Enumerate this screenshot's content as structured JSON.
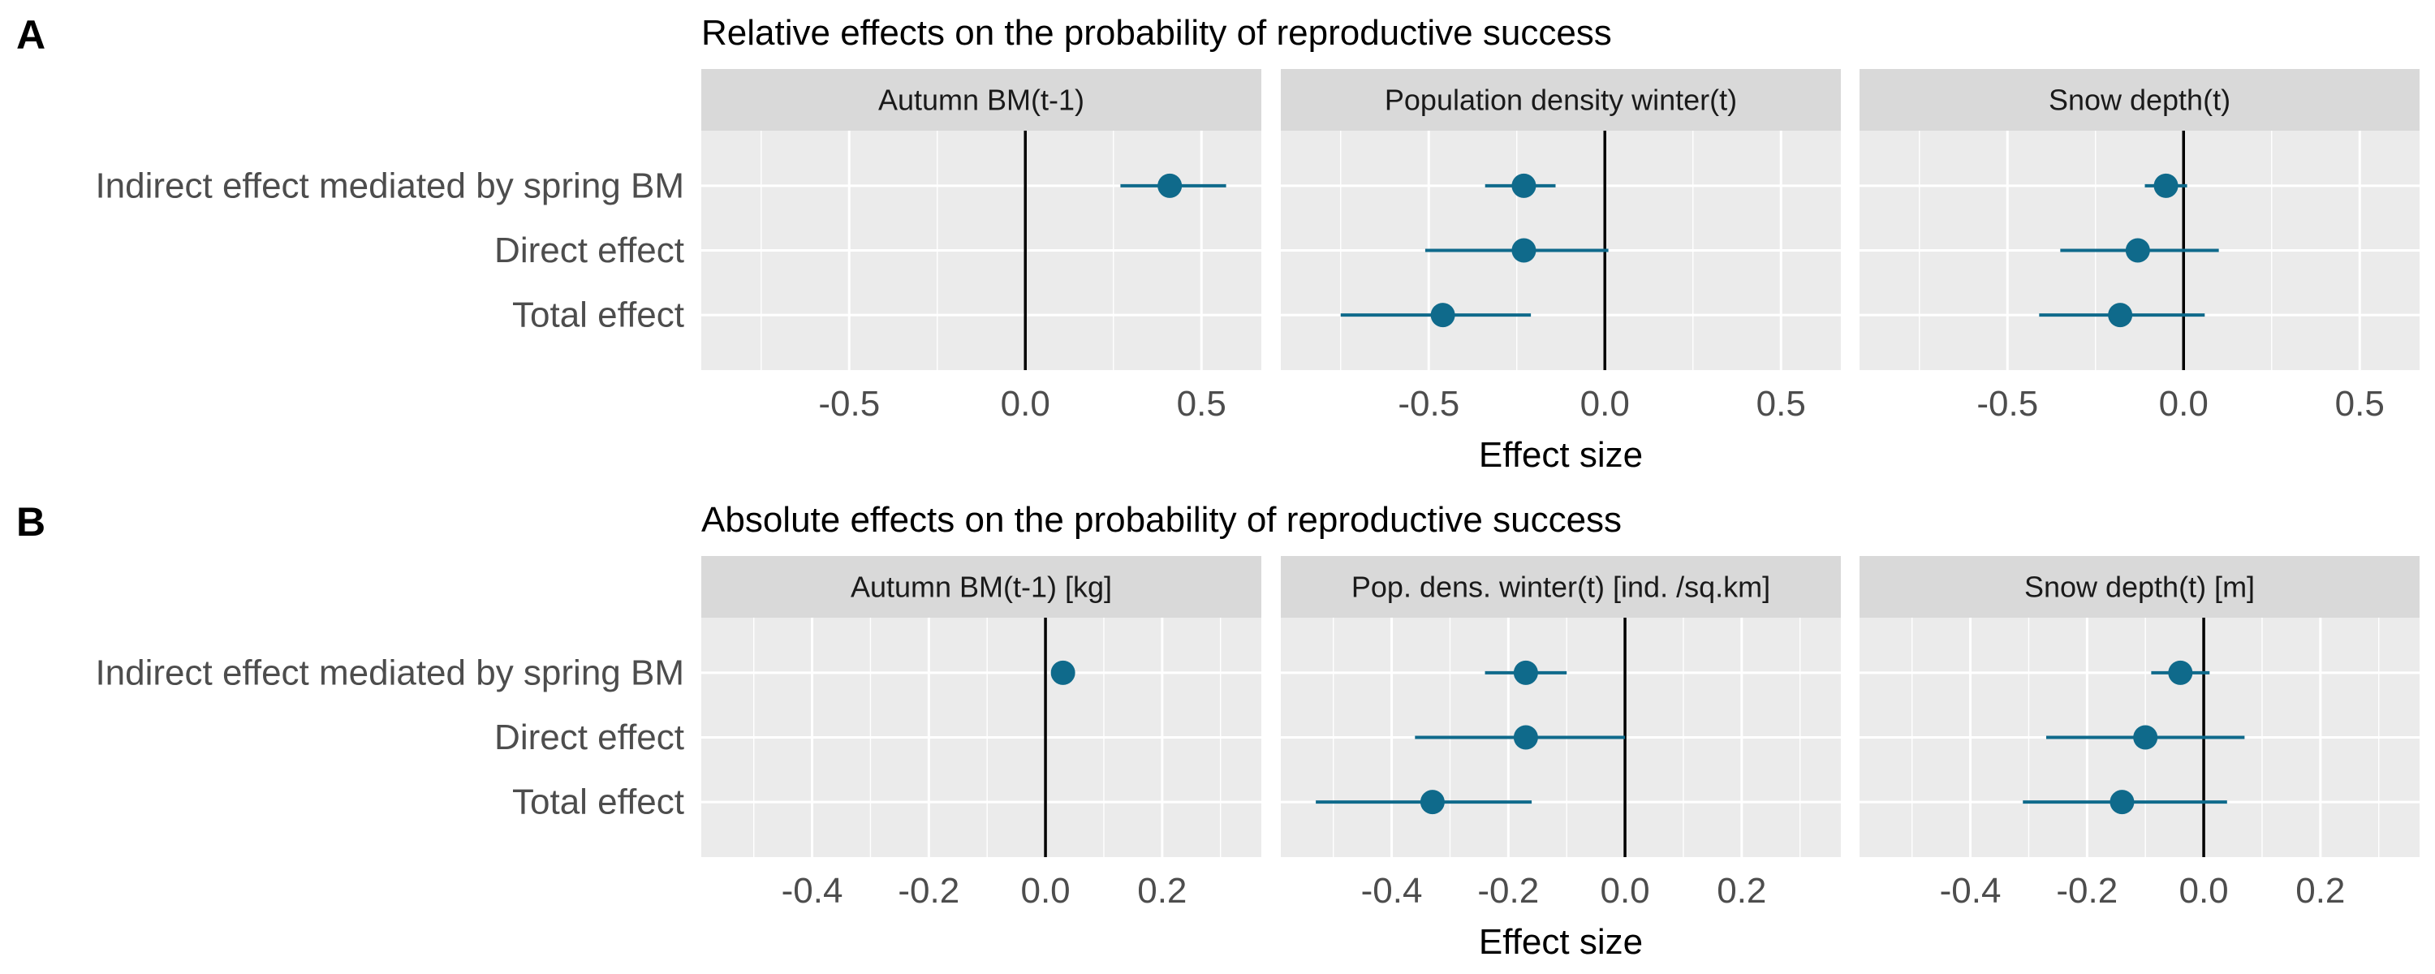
{
  "colors": {
    "point": "#0f6a8b",
    "panel_background": "#ebebeb",
    "strip_background": "#d9d9d9",
    "grid": "#ffffff",
    "zero_line": "#000000"
  },
  "chart_data": [
    {
      "type": "scatter",
      "panel": "A",
      "title": "Relative effects on the probability of reproductive success",
      "xlabel": "Effect size",
      "categories": [
        "Indirect effect mediated by spring BM",
        "Direct effect",
        "Total effect"
      ],
      "xticks": [
        -0.5,
        0.0,
        0.5
      ],
      "xtick_labels": [
        "-0.5",
        "0.0",
        "0.5"
      ],
      "grid": true,
      "facets": [
        {
          "name": "Autumn BM(t-1)",
          "xlim": [
            -0.92,
            0.67
          ],
          "points": [
            {
              "category": "Indirect effect mediated by spring BM",
              "estimate": 0.41,
              "lower": 0.27,
              "upper": 0.57
            }
          ]
        },
        {
          "name": "Population density winter(t)",
          "xlim": [
            -0.92,
            0.67
          ],
          "points": [
            {
              "category": "Indirect effect mediated by spring BM",
              "estimate": -0.23,
              "lower": -0.34,
              "upper": -0.14
            },
            {
              "category": "Direct effect",
              "estimate": -0.23,
              "lower": -0.51,
              "upper": 0.01
            },
            {
              "category": "Total effect",
              "estimate": -0.46,
              "lower": -0.75,
              "upper": -0.21
            }
          ]
        },
        {
          "name": "Snow depth(t)",
          "xlim": [
            -0.92,
            0.67
          ],
          "points": [
            {
              "category": "Indirect effect mediated by spring BM",
              "estimate": -0.05,
              "lower": -0.11,
              "upper": 0.01
            },
            {
              "category": "Direct effect",
              "estimate": -0.13,
              "lower": -0.35,
              "upper": 0.1
            },
            {
              "category": "Total effect",
              "estimate": -0.18,
              "lower": -0.41,
              "upper": 0.06
            }
          ]
        }
      ]
    },
    {
      "type": "scatter",
      "panel": "B",
      "title": "Absolute effects on the probability of  reproductive success",
      "xlabel": "Effect size",
      "categories": [
        "Indirect effect mediated by spring BM",
        "Direct effect",
        "Total effect"
      ],
      "xticks": [
        -0.4,
        -0.2,
        0.0,
        0.2
      ],
      "xtick_labels": [
        "-0.4",
        "-0.2",
        "0.0",
        "0.2"
      ],
      "grid": true,
      "facets": [
        {
          "name": "Autumn BM(t-1) [kg]",
          "xlim": [
            -0.59,
            0.37
          ],
          "points": [
            {
              "category": "Indirect effect mediated by spring BM",
              "estimate": 0.03,
              "lower": 0.03,
              "upper": 0.03
            }
          ]
        },
        {
          "name": "Pop. dens. winter(t) [ind. /sq.km]",
          "xlim": [
            -0.59,
            0.37
          ],
          "points": [
            {
              "category": "Indirect effect mediated by spring BM",
              "estimate": -0.17,
              "lower": -0.24,
              "upper": -0.1
            },
            {
              "category": "Direct effect",
              "estimate": -0.17,
              "lower": -0.36,
              "upper": 0.0
            },
            {
              "category": "Total effect",
              "estimate": -0.33,
              "lower": -0.53,
              "upper": -0.16
            }
          ]
        },
        {
          "name": "Snow depth(t) [m]",
          "xlim": [
            -0.59,
            0.37
          ],
          "points": [
            {
              "category": "Indirect effect mediated by spring BM",
              "estimate": -0.04,
              "lower": -0.09,
              "upper": 0.01
            },
            {
              "category": "Direct effect",
              "estimate": -0.1,
              "lower": -0.27,
              "upper": 0.07
            },
            {
              "category": "Total effect",
              "estimate": -0.14,
              "lower": -0.31,
              "upper": 0.04
            }
          ]
        }
      ]
    }
  ]
}
